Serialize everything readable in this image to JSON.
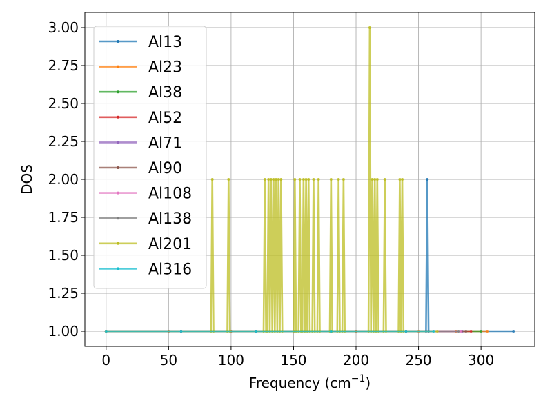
{
  "chart_data": {
    "type": "line",
    "xlabel": "Frequency (cm",
    "xlabel_sup": "−1",
    "xlabel_end": ")",
    "ylabel": "DOS",
    "xlim": [
      -17,
      343
    ],
    "ylim": [
      0.9,
      3.1
    ],
    "xticks": [
      0,
      50,
      100,
      150,
      200,
      250,
      300
    ],
    "xtick_labels": [
      "0",
      "50",
      "100",
      "150",
      "200",
      "250",
      "300"
    ],
    "yticks": [
      1.0,
      1.25,
      1.5,
      1.75,
      2.0,
      2.25,
      2.5,
      2.75,
      3.0
    ],
    "ytick_labels": [
      "1.00",
      "1.25",
      "1.50",
      "1.75",
      "2.00",
      "2.25",
      "2.50",
      "2.75",
      "3.00"
    ],
    "grid": true,
    "legend_position": "upper-left",
    "series": [
      {
        "name": "Al13",
        "color": "#1f77b4",
        "points": [
          [
            0,
            1
          ],
          [
            50,
            1
          ],
          [
            100,
            1
          ],
          [
            150,
            1
          ],
          [
            200,
            1
          ],
          [
            256,
            1
          ],
          [
            257,
            2
          ],
          [
            258,
            1
          ],
          [
            326,
            1
          ]
        ]
      },
      {
        "name": "Al23",
        "color": "#ff7f0e",
        "points": [
          [
            0,
            1
          ],
          [
            50,
            1
          ],
          [
            100,
            1
          ],
          [
            150,
            1
          ],
          [
            200,
            1
          ],
          [
            250,
            1
          ],
          [
            280,
            1
          ],
          [
            305,
            1
          ]
        ]
      },
      {
        "name": "Al38",
        "color": "#2ca02c",
        "points": [
          [
            0,
            1
          ],
          [
            60,
            1
          ],
          [
            120,
            1
          ],
          [
            180,
            1
          ],
          [
            240,
            1
          ],
          [
            300,
            1
          ]
        ]
      },
      {
        "name": "Al52",
        "color": "#d62728",
        "points": [
          [
            0,
            1
          ],
          [
            60,
            1
          ],
          [
            120,
            1
          ],
          [
            180,
            1
          ],
          [
            240,
            1
          ],
          [
            292,
            1
          ]
        ]
      },
      {
        "name": "Al71",
        "color": "#9467bd",
        "points": [
          [
            0,
            1
          ],
          [
            60,
            1
          ],
          [
            120,
            1
          ],
          [
            180,
            1
          ],
          [
            240,
            1
          ],
          [
            285,
            1
          ]
        ]
      },
      {
        "name": "Al90",
        "color": "#8c564b",
        "points": [
          [
            0,
            1
          ],
          [
            60,
            1
          ],
          [
            120,
            1
          ],
          [
            180,
            1
          ],
          [
            240,
            1
          ],
          [
            288,
            1
          ]
        ]
      },
      {
        "name": "Al108",
        "color": "#e377c2",
        "points": [
          [
            0,
            1
          ],
          [
            60,
            1
          ],
          [
            120,
            1
          ],
          [
            180,
            1
          ],
          [
            240,
            1
          ],
          [
            284,
            1
          ]
        ]
      },
      {
        "name": "Al138",
        "color": "#7f7f7f",
        "points": [
          [
            0,
            1
          ],
          [
            60,
            1
          ],
          [
            120,
            1
          ],
          [
            180,
            1
          ],
          [
            240,
            1
          ],
          [
            282,
            1
          ]
        ]
      },
      {
        "name": "Al201",
        "color": "#bcbd22",
        "points": [
          [
            0,
            1
          ],
          [
            84,
            1
          ],
          [
            85,
            2
          ],
          [
            86,
            1
          ],
          [
            97,
            1
          ],
          [
            98,
            2
          ],
          [
            99,
            1
          ],
          [
            126,
            1
          ],
          [
            127,
            2
          ],
          [
            128,
            1
          ],
          [
            129,
            1
          ],
          [
            130,
            2
          ],
          [
            131,
            1
          ],
          [
            132,
            2
          ],
          [
            133,
            1
          ],
          [
            134,
            2
          ],
          [
            135,
            1
          ],
          [
            136,
            2
          ],
          [
            137,
            1
          ],
          [
            138,
            2
          ],
          [
            139,
            1
          ],
          [
            140,
            2
          ],
          [
            141,
            1
          ],
          [
            150,
            1
          ],
          [
            151,
            2
          ],
          [
            152,
            1
          ],
          [
            154,
            1
          ],
          [
            155,
            2
          ],
          [
            156,
            1
          ],
          [
            157,
            1
          ],
          [
            158,
            2
          ],
          [
            159,
            1
          ],
          [
            160,
            2
          ],
          [
            161,
            1
          ],
          [
            162,
            2
          ],
          [
            163,
            1
          ],
          [
            165,
            1
          ],
          [
            166,
            2
          ],
          [
            167,
            1
          ],
          [
            169,
            1
          ],
          [
            170,
            2
          ],
          [
            171,
            1
          ],
          [
            179,
            1
          ],
          [
            180,
            2
          ],
          [
            181,
            1
          ],
          [
            185,
            1
          ],
          [
            186,
            2
          ],
          [
            187,
            1
          ],
          [
            189,
            1
          ],
          [
            190,
            2
          ],
          [
            191,
            1
          ],
          [
            210,
            1
          ],
          [
            211,
            3
          ],
          [
            212,
            1
          ],
          [
            213,
            2
          ],
          [
            214,
            1
          ],
          [
            215,
            2
          ],
          [
            216,
            1
          ],
          [
            217,
            2
          ],
          [
            218,
            1
          ],
          [
            222,
            1
          ],
          [
            223,
            2
          ],
          [
            224,
            1
          ],
          [
            234,
            1
          ],
          [
            235,
            2
          ],
          [
            236,
            1
          ],
          [
            237,
            2
          ],
          [
            238,
            1
          ],
          [
            265,
            1
          ]
        ]
      },
      {
        "name": "Al316",
        "color": "#17becf",
        "points": [
          [
            0,
            1
          ],
          [
            60,
            1
          ],
          [
            120,
            1
          ],
          [
            180,
            1
          ],
          [
            240,
            1
          ],
          [
            262,
            1
          ]
        ]
      }
    ]
  }
}
